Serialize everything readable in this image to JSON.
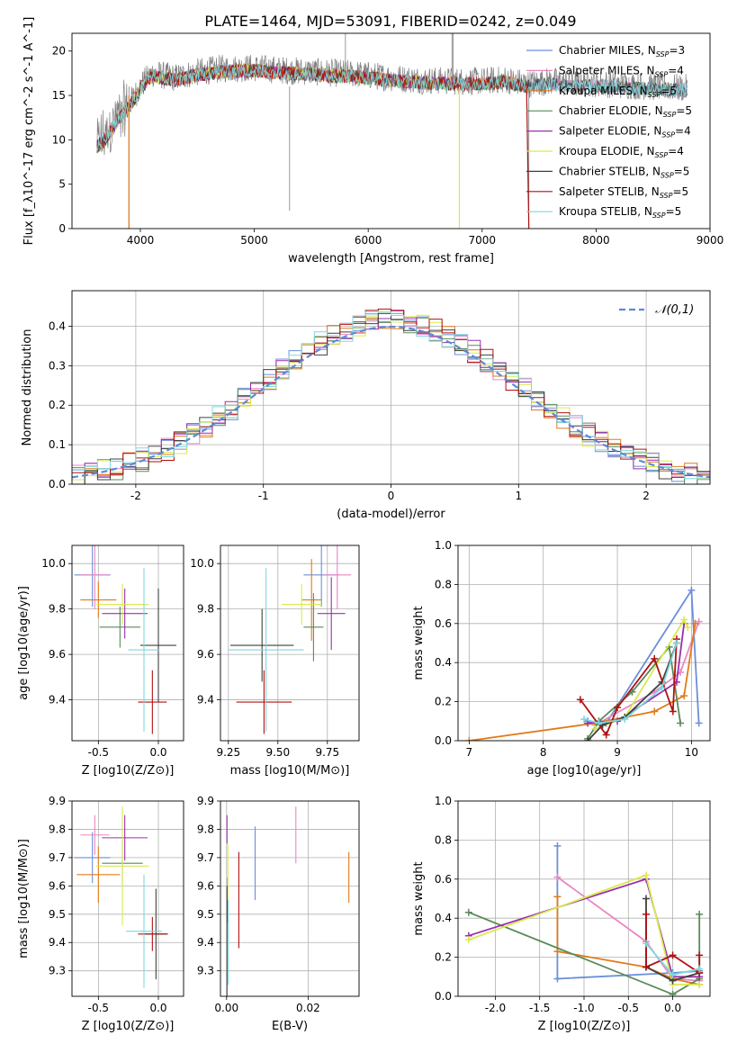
{
  "figure": {
    "title": "PLATE=1464, MJD=53091, FIBERID=0242, z=0.049"
  },
  "colors": {
    "Chabrier MILES": "#6b8fd9",
    "Salpeter MILES": "#ea86c2",
    "Kroupa MILES": "#e07b1a",
    "Chabrier ELODIE": "#5a8a5a",
    "Salpeter ELODIE": "#9b2fae",
    "Kroupa ELODIE": "#d9ea50",
    "Chabrier STELIB": "#404040",
    "Salpeter STELIB": "#b01010",
    "Kroupa STELIB": "#7fd8de",
    "data": "#808080",
    "gaussian": "#5b8ad8"
  },
  "chart_data": [
    {
      "id": "spectrum",
      "type": "line",
      "xlabel": "wavelength [Angstrom, rest frame]",
      "ylabel": "Flux [f_λ10^-17 erg cm^-2 s^-1 A^-1]",
      "xlim": [
        3400,
        9000
      ],
      "ylim": [
        0,
        22
      ],
      "xticks": [
        4000,
        5000,
        6000,
        7000,
        8000,
        9000
      ],
      "yticks": [
        0,
        5,
        10,
        15,
        20
      ],
      "legend_position": "top-right",
      "legend": [
        "Chabrier MILES, N_SSP=3",
        "Salpeter MILES, N_SSP=4",
        "Kroupa MILES, N_SSP=5",
        "Chabrier ELODIE, N_SSP=5",
        "Salpeter ELODIE, N_SSP=4",
        "Kroupa ELODIE, N_SSP=4",
        "Chabrier STELIB, N_SSP=5",
        "Salpeter STELIB, N_SSP=5",
        "Kroupa STELIB, N_SSP=5"
      ],
      "data_envelope": {
        "x": [
          3620,
          3700,
          3800,
          3900,
          4000,
          4100,
          4300,
          4500,
          4700,
          5000,
          5300,
          5600,
          5900,
          6200,
          6500,
          6800,
          7000,
          7200,
          7400,
          7600,
          7800,
          8000,
          8200,
          8500,
          8800
        ],
        "y": [
          9.5,
          10.5,
          12.5,
          14.0,
          16.0,
          17.5,
          17.0,
          17.6,
          18.0,
          18.1,
          17.8,
          17.6,
          17.4,
          17.0,
          16.7,
          16.6,
          16.6,
          16.8,
          16.3,
          16.6,
          16.3,
          16.4,
          16.2,
          16.0,
          15.8
        ]
      }
    },
    {
      "id": "residuals",
      "type": "bar",
      "xlabel": "(data-model)/error",
      "ylabel": "Normed distribution",
      "xlim": [
        -2.5,
        2.5
      ],
      "ylim": [
        0,
        0.49
      ],
      "xticks": [
        -2,
        -1,
        0,
        1,
        2
      ],
      "yticks": [
        0.0,
        0.1,
        0.2,
        0.3,
        0.4
      ],
      "legend_position": "top-right",
      "legend": [
        "𝒩(0,1)"
      ],
      "bin_width": 0.1,
      "series_order": [
        "Chabrier MILES",
        "Salpeter MILES",
        "Kroupa MILES",
        "Chabrier ELODIE",
        "Salpeter ELODIE",
        "Kroupa ELODIE",
        "Chabrier STELIB",
        "Salpeter STELIB",
        "Kroupa STELIB"
      ]
    },
    {
      "id": "Z_vs_age",
      "type": "scatter",
      "xlabel": "Z [log10(Z/Z⊙)]",
      "ylabel": "age [log10(age/yr)]",
      "xlim": [
        -0.72,
        0.21
      ],
      "ylim": [
        9.22,
        10.08
      ],
      "xticks": [
        -0.5,
        0.0
      ],
      "yticks": [
        9.4,
        9.6,
        9.8,
        10.0
      ],
      "points": [
        {
          "series": "Chabrier MILES",
          "x": -0.55,
          "y": 9.95,
          "xerr": 0.15,
          "yerr": 0.14
        },
        {
          "series": "Salpeter MILES",
          "x": -0.53,
          "y": 9.95,
          "xerr": 0.12,
          "yerr": 0.15
        },
        {
          "series": "Kroupa MILES",
          "x": -0.5,
          "y": 9.84,
          "xerr": 0.15,
          "yerr": 0.08
        },
        {
          "series": "Chabrier ELODIE",
          "x": -0.32,
          "y": 9.72,
          "xerr": 0.17,
          "yerr": 0.09
        },
        {
          "series": "Salpeter ELODIE",
          "x": -0.28,
          "y": 9.78,
          "xerr": 0.19,
          "yerr": 0.11
        },
        {
          "series": "Kroupa ELODIE",
          "x": -0.3,
          "y": 9.82,
          "xerr": 0.22,
          "yerr": 0.09
        },
        {
          "series": "Chabrier STELIB",
          "x": 0.0,
          "y": 9.64,
          "xerr": 0.15,
          "yerr": 0.25
        },
        {
          "series": "Salpeter STELIB",
          "x": -0.05,
          "y": 9.39,
          "xerr": 0.12,
          "yerr": 0.14
        },
        {
          "series": "Kroupa STELIB",
          "x": -0.12,
          "y": 9.62,
          "xerr": 0.13,
          "yerr": 0.36
        }
      ]
    },
    {
      "id": "mass_vs_age",
      "type": "scatter",
      "xlabel": "mass [log10(M/M⊙)]",
      "ylabel": "",
      "xlim": [
        9.21,
        9.91
      ],
      "ylim": [
        9.22,
        10.08
      ],
      "xticks": [
        9.25,
        9.5,
        9.75
      ],
      "yticks": [
        9.4,
        9.6,
        9.8,
        10.0
      ],
      "points": [
        {
          "series": "Chabrier MILES",
          "x": 9.72,
          "y": 9.95,
          "xerr": 0.09,
          "yerr": 0.14
        },
        {
          "series": "Salpeter MILES",
          "x": 9.8,
          "y": 9.95,
          "xerr": 0.07,
          "yerr": 0.15
        },
        {
          "series": "Kroupa MILES",
          "x": 9.67,
          "y": 9.84,
          "xerr": 0.05,
          "yerr": 0.18
        },
        {
          "series": "Chabrier ELODIE",
          "x": 9.68,
          "y": 9.72,
          "xerr": 0.05,
          "yerr": 0.15
        },
        {
          "series": "Salpeter ELODIE",
          "x": 9.77,
          "y": 9.78,
          "xerr": 0.07,
          "yerr": 0.16
        },
        {
          "series": "Kroupa ELODIE",
          "x": 9.62,
          "y": 9.82,
          "xerr": 0.1,
          "yerr": 0.09
        },
        {
          "series": "Chabrier STELIB",
          "x": 9.42,
          "y": 9.64,
          "xerr": 0.16,
          "yerr": 0.16
        },
        {
          "series": "Salpeter STELIB",
          "x": 9.43,
          "y": 9.39,
          "xerr": 0.14,
          "yerr": 0.14
        },
        {
          "series": "Kroupa STELIB",
          "x": 9.44,
          "y": 9.62,
          "xerr": 0.19,
          "yerr": 0.36
        }
      ]
    },
    {
      "id": "age_vs_mass_weight",
      "type": "line",
      "xlabel": "age [log10(age/yr)]",
      "ylabel": "mass weight",
      "xlim": [
        6.85,
        10.25
      ],
      "ylim": [
        0,
        1.0
      ],
      "xticks": [
        7,
        8,
        9,
        10
      ],
      "yticks": [
        0.0,
        0.2,
        0.4,
        0.6,
        0.8,
        1.0
      ],
      "series": [
        {
          "name": "Chabrier MILES",
          "x": [
            8.6,
            8.85,
            10.0,
            10.1
          ],
          "y": [
            0.1,
            0.09,
            0.77,
            0.09
          ]
        },
        {
          "name": "Salpeter MILES",
          "x": [
            8.7,
            9.5,
            9.85,
            10.1
          ],
          "y": [
            0.08,
            0.25,
            0.35,
            0.61
          ]
        },
        {
          "name": "Kroupa MILES",
          "x": [
            7.0,
            8.7,
            9.5,
            9.9,
            10.05
          ],
          "y": [
            0.0,
            0.09,
            0.15,
            0.23,
            0.6
          ]
        },
        {
          "name": "Chabrier ELODIE",
          "x": [
            8.6,
            8.75,
            9.2,
            9.7,
            9.85
          ],
          "y": [
            0.01,
            0.1,
            0.25,
            0.48,
            0.09
          ]
        },
        {
          "name": "Salpeter ELODIE",
          "x": [
            8.6,
            9.0,
            9.8,
            9.9
          ],
          "y": [
            0.09,
            0.1,
            0.3,
            0.6
          ]
        },
        {
          "name": "Kroupa ELODIE",
          "x": [
            8.7,
            9.1,
            9.9,
            9.95
          ],
          "y": [
            0.06,
            0.12,
            0.62,
            0.58
          ]
        },
        {
          "name": "Chabrier STELIB",
          "x": [
            8.6,
            8.8,
            9.1,
            9.6,
            9.8
          ],
          "y": [
            0.0,
            0.08,
            0.12,
            0.3,
            0.5
          ]
        },
        {
          "name": "Salpeter STELIB",
          "x": [
            8.5,
            8.85,
            9.0,
            9.5,
            9.75,
            9.8
          ],
          "y": [
            0.21,
            0.03,
            0.17,
            0.42,
            0.15,
            0.52
          ]
        },
        {
          "name": "Kroupa STELIB",
          "x": [
            8.55,
            8.75,
            9.1,
            9.6,
            9.8
          ],
          "y": [
            0.11,
            0.09,
            0.11,
            0.27,
            0.5
          ]
        }
      ]
    },
    {
      "id": "Z_vs_mass",
      "type": "scatter",
      "xlabel": "Z [log10(Z/Z⊙)]",
      "ylabel": "mass [log10(M/M⊙)]",
      "xlim": [
        -0.72,
        0.21
      ],
      "ylim": [
        9.21,
        9.9
      ],
      "xticks": [
        -0.5,
        0.0
      ],
      "yticks": [
        9.3,
        9.4,
        9.5,
        9.6,
        9.7,
        9.8,
        9.9
      ],
      "points": [
        {
          "series": "Chabrier MILES",
          "x": -0.55,
          "y": 9.7,
          "xerr": 0.15,
          "yerr": 0.09
        },
        {
          "series": "Salpeter MILES",
          "x": -0.53,
          "y": 9.78,
          "xerr": 0.12,
          "yerr": 0.07
        },
        {
          "series": "Kroupa MILES",
          "x": -0.5,
          "y": 9.64,
          "xerr": 0.18,
          "yerr": 0.1
        },
        {
          "series": "Chabrier ELODIE",
          "x": -0.3,
          "y": 9.68,
          "xerr": 0.17,
          "yerr": 0.08
        },
        {
          "series": "Salpeter ELODIE",
          "x": -0.28,
          "y": 9.77,
          "xerr": 0.19,
          "yerr": 0.08
        },
        {
          "series": "Kroupa ELODIE",
          "x": -0.3,
          "y": 9.67,
          "xerr": 0.22,
          "yerr": 0.21
        },
        {
          "series": "Chabrier STELIB",
          "x": -0.02,
          "y": 9.43,
          "xerr": 0.1,
          "yerr": 0.16
        },
        {
          "series": "Salpeter STELIB",
          "x": -0.05,
          "y": 9.43,
          "xerr": 0.12,
          "yerr": 0.06
        },
        {
          "series": "Kroupa STELIB",
          "x": -0.12,
          "y": 9.44,
          "xerr": 0.15,
          "yerr": 0.2
        }
      ]
    },
    {
      "id": "ebv_vs_mass",
      "type": "scatter",
      "xlabel": "E(B-V)",
      "ylabel": "",
      "xlim": [
        -0.0015,
        0.0325
      ],
      "ylim": [
        9.21,
        9.9
      ],
      "xticks": [
        0.0,
        0.02
      ],
      "yticks": [
        9.3,
        9.4,
        9.5,
        9.6,
        9.7,
        9.8,
        9.9
      ],
      "points": [
        {
          "series": "Chabrier MILES",
          "x": 0.007,
          "y": 9.68,
          "xerr": 0,
          "yerr": 0.13
        },
        {
          "series": "Salpeter MILES",
          "x": 0.017,
          "y": 9.78,
          "xerr": 0,
          "yerr": 0.1
        },
        {
          "series": "Kroupa MILES",
          "x": 0.03,
          "y": 9.63,
          "xerr": 0,
          "yerr": 0.09
        },
        {
          "series": "Chabrier ELODIE",
          "x": 0.0002,
          "y": 9.55,
          "xerr": 0,
          "yerr": 0.08
        },
        {
          "series": "Salpeter ELODIE",
          "x": 0.0001,
          "y": 9.8,
          "xerr": 0,
          "yerr": 0.05
        },
        {
          "series": "Kroupa ELODIE",
          "x": 0.0003,
          "y": 9.65,
          "xerr": 0,
          "yerr": 0.1
        },
        {
          "series": "Chabrier STELIB",
          "x": 0.0001,
          "y": 9.4,
          "xerr": 0,
          "yerr": 0.2
        },
        {
          "series": "Salpeter STELIB",
          "x": 0.003,
          "y": 9.55,
          "xerr": 0,
          "yerr": 0.17
        },
        {
          "series": "Kroupa STELIB",
          "x": 0.0004,
          "y": 9.4,
          "xerr": 0,
          "yerr": 0.15
        }
      ]
    },
    {
      "id": "Z_vs_mass_weight",
      "type": "line",
      "xlabel": "Z [log10(Z/Z⊙)]",
      "ylabel": "mass weight",
      "xlim": [
        -2.42,
        0.42
      ],
      "ylim": [
        0,
        1.0
      ],
      "xticks": [
        -2.0,
        -1.5,
        -1.0,
        -0.5,
        0.0
      ],
      "yticks": [
        0.0,
        0.2,
        0.4,
        0.6,
        0.8,
        1.0
      ],
      "series": [
        {
          "name": "Chabrier MILES",
          "x": [
            -1.3,
            -1.3,
            0.0,
            0.3
          ],
          "y": [
            0.77,
            0.09,
            0.12,
            0.13
          ]
        },
        {
          "name": "Salpeter MILES",
          "x": [
            -1.3,
            -0.3,
            0.0,
            0.3
          ],
          "y": [
            0.61,
            0.28,
            0.09,
            0.08
          ]
        },
        {
          "name": "Kroupa MILES",
          "x": [
            -1.3,
            -1.3,
            -0.3,
            0.0,
            0.3
          ],
          "y": [
            0.51,
            0.23,
            0.15,
            0.09,
            0.06
          ]
        },
        {
          "name": "Chabrier ELODIE",
          "x": [
            -2.3,
            0.0,
            0.3,
            0.3
          ],
          "y": [
            0.43,
            0.01,
            0.09,
            0.42
          ]
        },
        {
          "name": "Salpeter ELODIE",
          "x": [
            -2.3,
            -0.3,
            0.0,
            0.3
          ],
          "y": [
            0.31,
            0.6,
            0.1,
            0.1
          ]
        },
        {
          "name": "Kroupa ELODIE",
          "x": [
            -2.3,
            -0.3,
            0.0,
            0.3
          ],
          "y": [
            0.29,
            0.62,
            0.06,
            0.06
          ]
        },
        {
          "name": "Chabrier STELIB",
          "x": [
            -0.3,
            -0.3,
            0.0,
            0.3
          ],
          "y": [
            0.5,
            0.15,
            0.08,
            0.12
          ]
        },
        {
          "name": "Salpeter STELIB",
          "x": [
            -0.3,
            -0.3,
            0.0,
            0.3,
            0.3
          ],
          "y": [
            0.42,
            0.15,
            0.21,
            0.12,
            0.21
          ]
        },
        {
          "name": "Kroupa STELIB",
          "x": [
            -0.3,
            0.0,
            0.3
          ],
          "y": [
            0.27,
            0.11,
            0.14
          ]
        }
      ]
    }
  ]
}
